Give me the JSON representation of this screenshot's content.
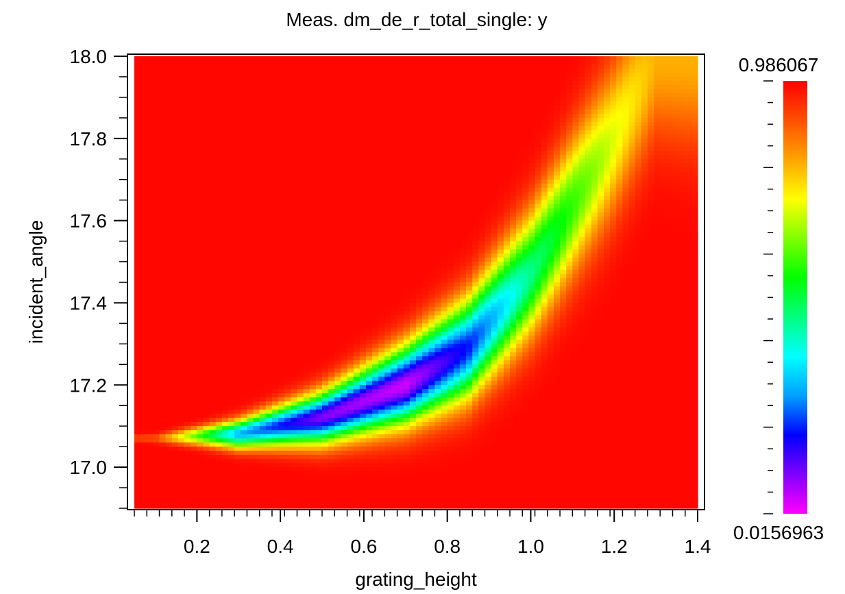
{
  "chart_data": {
    "type": "heatmap",
    "title": "Meas. dm_de_r_total_single:  y",
    "xlabel": "grating_height",
    "ylabel": "incident_angle",
    "xlim": [
      0.05,
      1.4
    ],
    "ylim": [
      16.9,
      18.0
    ],
    "x_ticks": [
      "0.2",
      "0.4",
      "0.6",
      "0.8",
      "1.0",
      "1.2",
      "1.4"
    ],
    "y_ticks": [
      "17.0",
      "17.2",
      "17.4",
      "17.6",
      "17.8",
      "18.0"
    ],
    "colorbar": {
      "max_label": "0.986067",
      "min_label": "0.0156963",
      "max": 0.986067,
      "min": 0.0156963,
      "colormap": [
        "#ff00ff",
        "#8000ff",
        "#0000ff",
        "#00a0ff",
        "#00ffff",
        "#00ff80",
        "#00ff00",
        "#80ff00",
        "#ffff00",
        "#ffa500",
        "#ff5000",
        "#ff0000"
      ]
    },
    "features": {
      "resonance_valley": [
        {
          "grating_height": 0.1,
          "incident_angle": 17.07,
          "value": 0.9
        },
        {
          "grating_height": 0.3,
          "incident_angle": 17.08,
          "value": 0.3
        },
        {
          "grating_height": 0.5,
          "incident_angle": 17.12,
          "value": 0.1
        },
        {
          "grating_height": 0.7,
          "incident_angle": 17.2,
          "value": 0.05
        },
        {
          "grating_height": 0.85,
          "incident_angle": 17.29,
          "value": 0.2
        },
        {
          "grating_height": 1.0,
          "incident_angle": 17.47,
          "value": 0.45
        },
        {
          "grating_height": 1.2,
          "incident_angle": 17.8,
          "value": 0.7
        },
        {
          "grating_height": 1.3,
          "incident_angle": 18.0,
          "value": 0.8
        }
      ],
      "background_value": 0.98
    }
  }
}
